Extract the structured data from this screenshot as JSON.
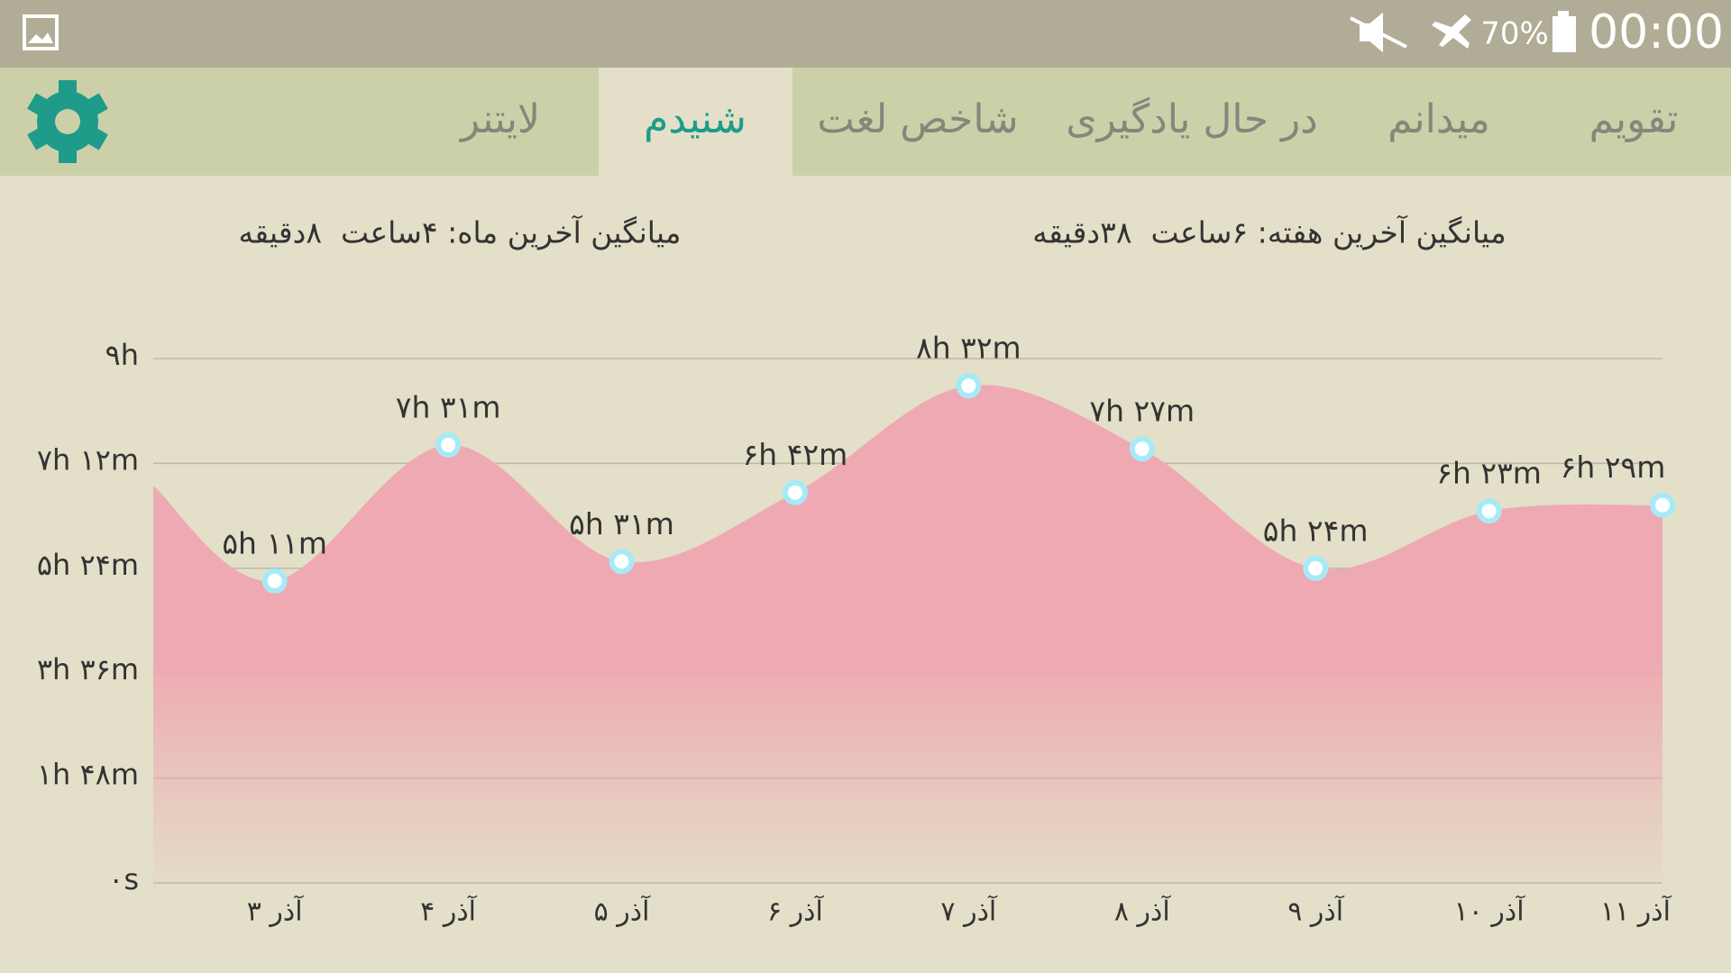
{
  "status_bar": {
    "battery": "70%",
    "time": "00:00"
  },
  "tabs": [
    "تقویم",
    "میدانم",
    "در حال یادگیری",
    "شاخص لغت",
    "شنیدم",
    "لایتنر"
  ],
  "selected_tab": 4,
  "stats": {
    "week": "میانگین آخرین هفته: ۶ساعت  ۳۸دقیقه",
    "month": "میانگین آخرین ماه: ۴ساعت  ۸دقیقه"
  },
  "chart_data": {
    "type": "area",
    "categories": [
      "۳ آذر",
      "۴ آذر",
      "۵ آذر",
      "۶ آذر",
      "۷ آذر",
      "۸ آذر",
      "۹ آذر",
      "۱۰ آذر",
      "۱۱ آذر"
    ],
    "values": [
      311,
      451,
      331,
      402,
      512,
      447,
      324,
      383,
      389
    ],
    "value_labels": [
      "۵h ۱۱m",
      "۷h ۳۱m",
      "۵h ۳۱m",
      "۶h ۴۲m",
      "۸h ۳۲m",
      "۷h ۲۷m",
      "۵h ۲۴m",
      "۶h ۲۳m",
      "۶h ۲۹m"
    ],
    "color": "#eea9b2",
    "ylim": [
      0,
      540
    ],
    "yticks": [
      {
        "value": 0,
        "label": "۰s"
      },
      {
        "value": 108,
        "label": "۱h ۴۸m"
      },
      {
        "value": 216,
        "label": "۳h ۳۶m"
      },
      {
        "value": 324,
        "label": "۵h ۲۴m"
      },
      {
        "value": 432,
        "label": "۷h ۱۲m"
      },
      {
        "value": 540,
        "label": "۹h"
      }
    ],
    "grid": true
  }
}
